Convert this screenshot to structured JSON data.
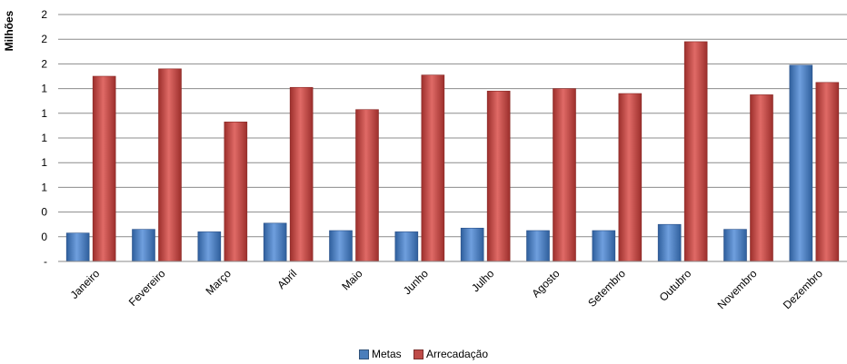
{
  "chart_data": {
    "type": "bar",
    "ylabel": "Milhões",
    "y_tick_labels": [
      "-",
      "0",
      "0",
      "1",
      "1",
      "1",
      "1",
      "1",
      "2",
      "2",
      "2"
    ],
    "ylim": [
      0,
      2.0
    ],
    "grid": true,
    "legend_position": "bottom",
    "categories": [
      "Janeiro",
      "Fevereiro",
      "Março",
      "Abril",
      "Maio",
      "Junho",
      "Julho",
      "Agosto",
      "Setembro",
      "Outubro",
      "Novembro",
      "Dezembro"
    ],
    "series": [
      {
        "name": "Metas",
        "color": "#4a7ebb",
        "values": [
          0.23,
          0.26,
          0.24,
          0.31,
          0.25,
          0.24,
          0.27,
          0.25,
          0.25,
          0.3,
          0.26,
          1.59
        ]
      },
      {
        "name": "Arrecadação",
        "color": "#be4b48",
        "values": [
          1.5,
          1.56,
          1.13,
          1.41,
          1.23,
          1.51,
          1.38,
          1.4,
          1.36,
          1.78,
          1.35,
          1.45
        ]
      }
    ]
  }
}
